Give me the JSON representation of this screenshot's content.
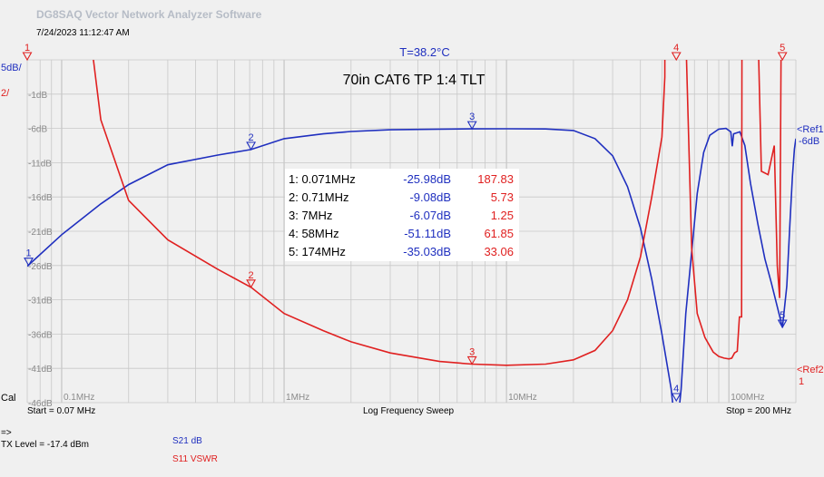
{
  "app": {
    "title": "DG8SAQ Vector Network Analyzer Software",
    "timestamp": "7/24/2023   11:12:47 AM",
    "temperature": "T=38.2°C",
    "cal_label": "Cal"
  },
  "footer": {
    "start": "Start = 0.07 MHz",
    "sweep": "Log Frequency Sweep",
    "stop": "Stop = 200 MHz",
    "arrow": "=>",
    "tx_level": "TX Level = -17.4 dBm",
    "legend_s21": "S21  dB",
    "legend_s11": "S11  VSWR"
  },
  "colors": {
    "s21": "#1f2fbf",
    "s11": "#e02020",
    "grid": "#c8c8c8",
    "markers_table_bg": "#ffffff",
    "background": "#f0f0f0"
  },
  "chart_data": {
    "type": "line",
    "title": "70in CAT6 TP 1:4 TLT",
    "x_scale": "log",
    "xlim_mhz": [
      0.07,
      200
    ],
    "x_tick_labels": [
      {
        "f": 0.1,
        "label": "0.1MHz"
      },
      {
        "f": 1,
        "label": "1MHz"
      },
      {
        "f": 10,
        "label": "10MHz"
      },
      {
        "f": 100,
        "label": "100MHz"
      }
    ],
    "y_left_scale_label": "5dB/",
    "y_left_scale2_label": "2/",
    "ylim_db": [
      -46,
      4
    ],
    "y_tick_labels": [
      {
        "v": -1,
        "label": "-1dB"
      },
      {
        "v": -6,
        "label": "-6dB"
      },
      {
        "v": -11,
        "label": "-11dB"
      },
      {
        "v": -16,
        "label": "-16dB"
      },
      {
        "v": -21,
        "label": "-21dB"
      },
      {
        "v": -26,
        "label": "-26dB"
      },
      {
        "v": -31,
        "label": "-31dB"
      },
      {
        "v": -36,
        "label": "-36dB"
      },
      {
        "v": -41,
        "label": "-41dB"
      },
      {
        "v": -46,
        "label": "-46dB"
      }
    ],
    "ref1_label": [
      "<Ref1",
      "-6dB"
    ],
    "ref2_label": [
      "<Ref2",
      "1"
    ],
    "ref1_db": -6,
    "ref2_vswr": 1,
    "vswr_per_div": 2,
    "grid": true,
    "series": [
      {
        "name": "S21",
        "unit": "dB",
        "color": "#1f2fbf",
        "points": [
          [
            0.07,
            -26.1
          ],
          [
            0.1,
            -21.5
          ],
          [
            0.15,
            -17.0
          ],
          [
            0.2,
            -14.2
          ],
          [
            0.3,
            -11.3
          ],
          [
            0.5,
            -9.9
          ],
          [
            0.71,
            -9.08
          ],
          [
            1,
            -7.5
          ],
          [
            1.5,
            -6.8
          ],
          [
            2,
            -6.45
          ],
          [
            3,
            -6.2
          ],
          [
            5,
            -6.1
          ],
          [
            7,
            -6.07
          ],
          [
            10,
            -6.05
          ],
          [
            15,
            -6.08
          ],
          [
            20,
            -6.3
          ],
          [
            25,
            -7.5
          ],
          [
            30,
            -10.0
          ],
          [
            35,
            -14.5
          ],
          [
            40,
            -20.5
          ],
          [
            45,
            -28
          ],
          [
            50,
            -36
          ],
          [
            55,
            -44
          ],
          [
            58,
            -51.11
          ],
          [
            61,
            -44
          ],
          [
            64,
            -33
          ],
          [
            68,
            -24
          ],
          [
            72,
            -15.5
          ],
          [
            77,
            -9.5
          ],
          [
            82,
            -7.0
          ],
          [
            90,
            -6.1
          ],
          [
            97,
            -6.0
          ],
          [
            102,
            -6.5
          ],
          [
            103.5,
            -8.6
          ],
          [
            105,
            -6.8
          ],
          [
            112,
            -6.5
          ],
          [
            118,
            -8.5
          ],
          [
            125,
            -14
          ],
          [
            135,
            -20
          ],
          [
            145,
            -25
          ],
          [
            155,
            -28.5
          ],
          [
            165,
            -32
          ],
          [
            174,
            -35.03
          ],
          [
            182,
            -29
          ],
          [
            188,
            -20
          ],
          [
            193,
            -13
          ],
          [
            197,
            -9
          ],
          [
            200,
            -7.5
          ]
        ]
      },
      {
        "name": "S11",
        "unit": "VSWR",
        "color": "#e02020",
        "points": [
          [
            0.07,
            100
          ],
          [
            0.1,
            34
          ],
          [
            0.15,
            15.5
          ],
          [
            0.2,
            10.8
          ],
          [
            0.3,
            8.5
          ],
          [
            0.5,
            6.8
          ],
          [
            0.71,
            5.73
          ],
          [
            1,
            4.2
          ],
          [
            1.5,
            3.2
          ],
          [
            2,
            2.55
          ],
          [
            3,
            1.9
          ],
          [
            5,
            1.4
          ],
          [
            7,
            1.25
          ],
          [
            10,
            1.18
          ],
          [
            15,
            1.25
          ],
          [
            20,
            1.5
          ],
          [
            25,
            2.05
          ],
          [
            30,
            3.2
          ],
          [
            35,
            5.0
          ],
          [
            40,
            7.5
          ],
          [
            45,
            11
          ],
          [
            50,
            14.5
          ],
          [
            51.5,
            18
          ],
          [
            52.3,
            100
          ],
          [
            58,
            61.85
          ],
          [
            63.5,
            100
          ],
          [
            64.5,
            19
          ],
          [
            68,
            8.0
          ],
          [
            72,
            4.2
          ],
          [
            78,
            2.8
          ],
          [
            85,
            1.95
          ],
          [
            90,
            1.7
          ],
          [
            95,
            1.6
          ],
          [
            100,
            1.55
          ],
          [
            103,
            1.6
          ],
          [
            106,
            1.9
          ],
          [
            109,
            2.0
          ],
          [
            111.5,
            4.0
          ],
          [
            114,
            4.0
          ],
          [
            116.5,
            100
          ],
          [
            124,
            100
          ],
          [
            127,
            60
          ],
          [
            130,
            30
          ],
          [
            140,
            12.5
          ],
          [
            150,
            12.3
          ],
          [
            160,
            14
          ],
          [
            165,
            7
          ],
          [
            169,
            5.1
          ],
          [
            174,
            33.06
          ],
          [
            178,
            100
          ]
        ]
      }
    ],
    "markers": [
      {
        "id": "1",
        "freq_label": "0.071MHz",
        "f": 0.071,
        "s21_db": -25.98,
        "s21_label": "-25.98dB",
        "s11_vswr": 187.83,
        "s11_label": "187.83"
      },
      {
        "id": "2",
        "freq_label": "0.71MHz",
        "f": 0.71,
        "s21_db": -9.08,
        "s21_label": "-9.08dB",
        "s11_vswr": 5.73,
        "s11_label": "5.73"
      },
      {
        "id": "3",
        "freq_label": "7MHz",
        "f": 7,
        "s21_db": -6.07,
        "s21_label": "-6.07dB",
        "s11_vswr": 1.25,
        "s11_label": "1.25"
      },
      {
        "id": "4",
        "freq_label": "58MHz",
        "f": 58,
        "s21_db": -51.11,
        "s21_label": "-51.11dB",
        "s11_vswr": 61.85,
        "s11_label": "61.85"
      },
      {
        "id": "5",
        "freq_label": "174MHz",
        "f": 174,
        "s21_db": -35.03,
        "s21_label": "-35.03dB",
        "s11_vswr": 33.06,
        "s11_label": "33.06"
      }
    ]
  }
}
